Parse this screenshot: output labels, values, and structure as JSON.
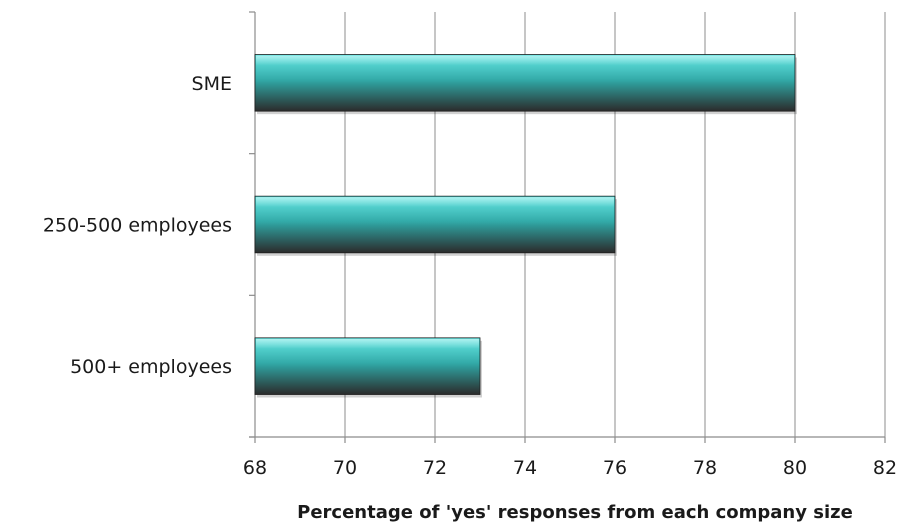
{
  "chart_data": {
    "type": "bar",
    "orientation": "horizontal",
    "categories": [
      "SME",
      "250-500 employees",
      "500+ employees"
    ],
    "values": [
      80,
      76,
      73
    ],
    "xlabel": "Percentage of 'yes' responses from each company size",
    "ylabel": "",
    "xlim": [
      68,
      82
    ],
    "xticks": [
      "68",
      "70",
      "72",
      "74",
      "76",
      "78",
      "80",
      "82"
    ],
    "grid": true,
    "legend": "none",
    "colors": {
      "bar_top": "#4fe3df",
      "bar_mid": "#2fa8a6",
      "bar_bottom": "#2b2b2b",
      "grid": "#8c8c8c"
    }
  }
}
